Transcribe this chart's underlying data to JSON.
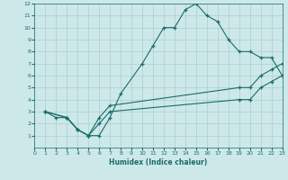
{
  "xlabel": "Humidex (Indice chaleur)",
  "xlim": [
    0,
    23
  ],
  "ylim": [
    0,
    12
  ],
  "xticks": [
    0,
    1,
    2,
    3,
    4,
    5,
    6,
    7,
    8,
    9,
    10,
    11,
    12,
    13,
    14,
    15,
    16,
    17,
    18,
    19,
    20,
    21,
    22,
    23
  ],
  "yticks": [
    1,
    2,
    3,
    4,
    5,
    6,
    7,
    8,
    9,
    10,
    11,
    12
  ],
  "background_color": "#cde8e8",
  "grid_color": "#aacfcf",
  "line_color": "#1a6b6b",
  "lines": [
    {
      "x": [
        1,
        2,
        3,
        4,
        5,
        6,
        7,
        8,
        10,
        11,
        12,
        13,
        14,
        15,
        16,
        17,
        18,
        19,
        20,
        21,
        22,
        23
      ],
      "y": [
        3,
        2.5,
        2.5,
        1.5,
        1,
        1,
        2.5,
        4.5,
        7,
        8.5,
        10,
        10,
        11.5,
        12,
        11,
        10.5,
        9,
        8,
        8,
        7.5,
        7.5,
        6
      ]
    },
    {
      "x": [
        1,
        3,
        4,
        5,
        6,
        7,
        19,
        20,
        21,
        22,
        23
      ],
      "y": [
        3,
        2.5,
        1.5,
        1,
        2,
        3,
        4,
        4,
        5,
        5.5,
        6
      ]
    },
    {
      "x": [
        1,
        3,
        4,
        5,
        6,
        7,
        19,
        20,
        21,
        22,
        23
      ],
      "y": [
        3,
        2.5,
        1.5,
        1,
        2.5,
        3.5,
        5,
        5,
        6,
        6.5,
        7
      ]
    }
  ]
}
